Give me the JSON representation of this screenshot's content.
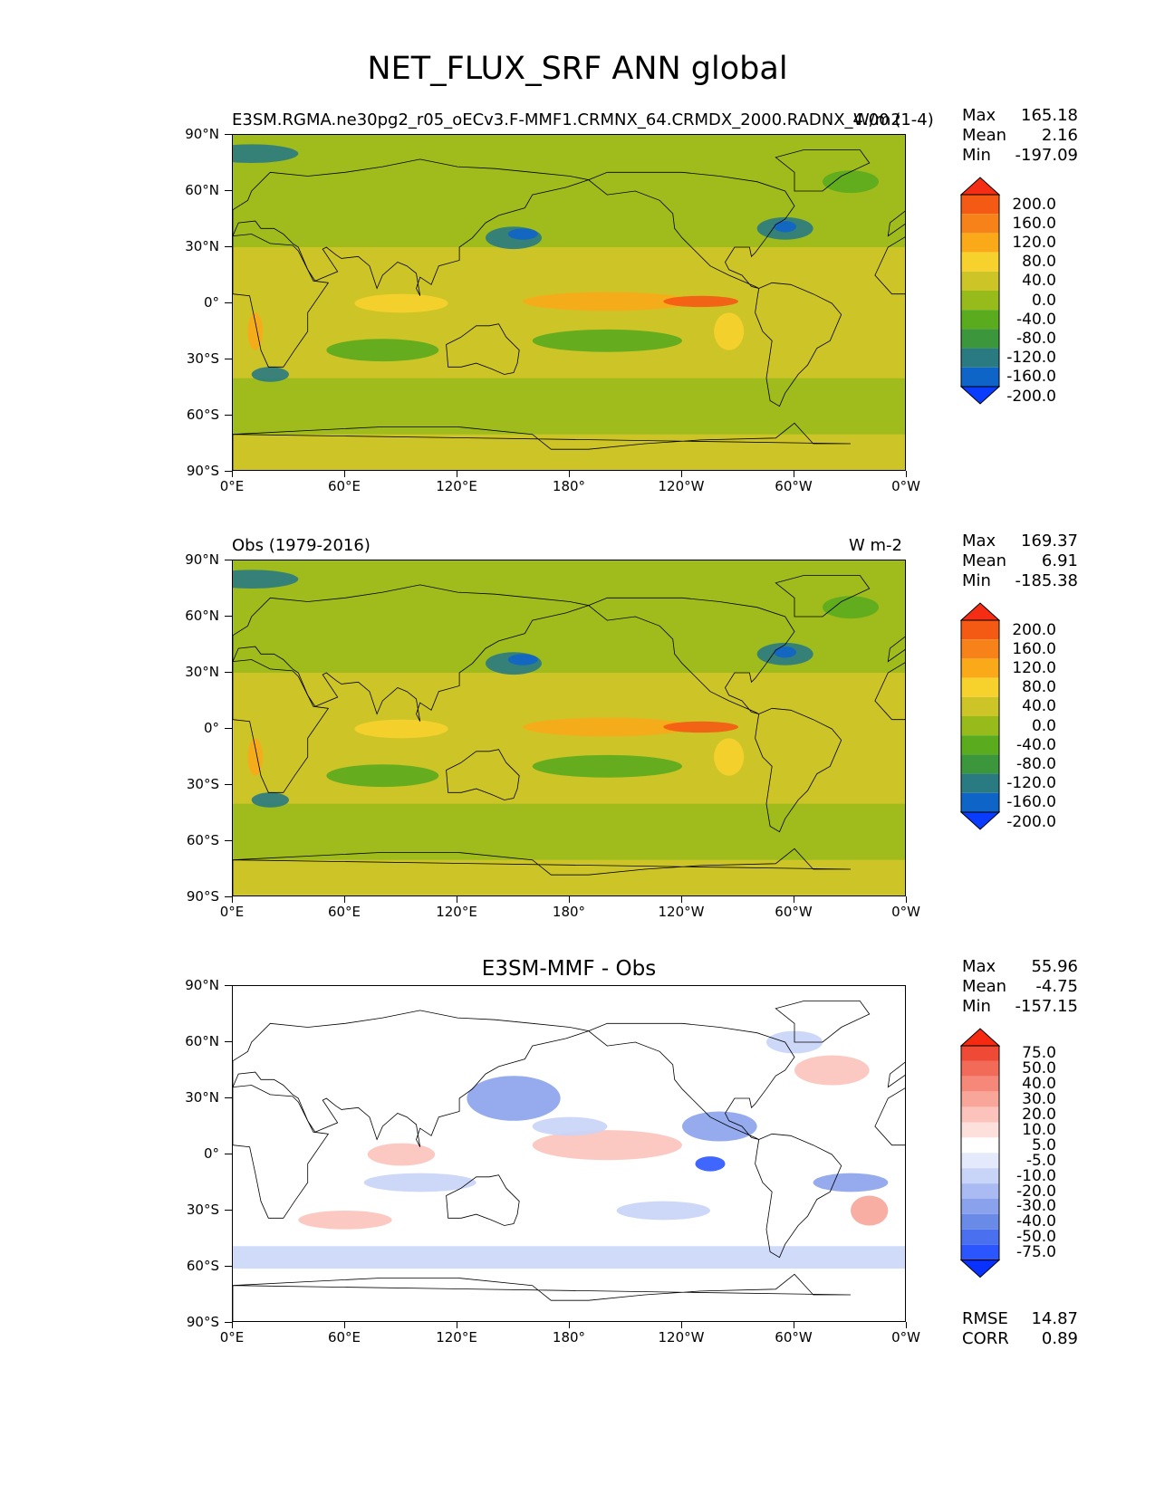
{
  "title": "NET_FLUX_SRF ANN global",
  "lat_ticks": [
    "90°N",
    "60°N",
    "30°N",
    "0°",
    "30°S",
    "60°S",
    "90°S"
  ],
  "lon_ticks": [
    "0°E",
    "60°E",
    "120°E",
    "180°",
    "120°W",
    "60°W",
    "0°W"
  ],
  "panels": [
    {
      "left_label": "E3SM.RGMA.ne30pg2_r05_oECv3.F-MMF1.CRMNX_64.CRMDX_2000.RADNX_4.00 (1-4)",
      "right_label": "W/m2",
      "center_label": "",
      "stats": {
        "max": "165.18",
        "mean": "2.16",
        "min": "-197.09"
      },
      "colorbar_labels": [
        "200.0",
        "160.0",
        "120.0",
        "80.0",
        "40.0",
        "0.0",
        "-40.0",
        "-80.0",
        "-120.0",
        "-160.0",
        "-200.0"
      ]
    },
    {
      "left_label": "Obs (1979-2016)",
      "right_label": "W m-2",
      "center_label": "",
      "stats": {
        "max": "169.37",
        "mean": "6.91",
        "min": "-185.38"
      },
      "colorbar_labels": [
        "200.0",
        "160.0",
        "120.0",
        "80.0",
        "40.0",
        "0.0",
        "-40.0",
        "-80.0",
        "-120.0",
        "-160.0",
        "-200.0"
      ]
    },
    {
      "left_label": "",
      "right_label": "",
      "center_label": "E3SM-MMF - Obs",
      "stats": {
        "max": "55.96",
        "mean": "-4.75",
        "min": "-157.15"
      },
      "colorbar_labels": [
        "75.0",
        "50.0",
        "40.0",
        "30.0",
        "20.0",
        "10.0",
        "5.0",
        "-5.0",
        "-10.0",
        "-20.0",
        "-30.0",
        "-40.0",
        "-50.0",
        "-75.0"
      ]
    }
  ],
  "stat_labels": {
    "max": "Max",
    "mean": "Mean",
    "min": "Min",
    "rmse": "RMSE",
    "corr": "CORR"
  },
  "diff_stats": {
    "rmse": "14.87",
    "corr": "0.89"
  },
  "chart_data": [
    {
      "type": "heatmap",
      "title": "E3SM.RGMA.ne30pg2_r05_oECv3.F-MMF1.CRMNX_64.CRMDX_2000.RADNX_4.00 (1-4)",
      "units": "W/m2",
      "x_range": [
        0,
        360
      ],
      "y_range": [
        -90,
        90
      ],
      "stats": {
        "max": 165.18,
        "mean": 2.16,
        "min": -197.09
      },
      "levels": [
        -200,
        -160,
        -120,
        -80,
        -40,
        0,
        40,
        80,
        120,
        160,
        200
      ],
      "colors": [
        "#0a3cff",
        "#0f64c8",
        "#2a7a82",
        "#3c963c",
        "#5aab1e",
        "#96bb1a",
        "#cdc428",
        "#f7d22c",
        "#faaa19",
        "#f7821a",
        "#f55a14",
        "#f52d14"
      ]
    },
    {
      "type": "heatmap",
      "title": "Obs (1979-2016)",
      "units": "W m-2",
      "x_range": [
        0,
        360
      ],
      "y_range": [
        -90,
        90
      ],
      "stats": {
        "max": 169.37,
        "mean": 6.91,
        "min": -185.38
      },
      "levels": [
        -200,
        -160,
        -120,
        -80,
        -40,
        0,
        40,
        80,
        120,
        160,
        200
      ]
    },
    {
      "type": "heatmap",
      "title": "E3SM-MMF - Obs",
      "x_range": [
        0,
        360
      ],
      "y_range": [
        -90,
        90
      ],
      "stats": {
        "max": 55.96,
        "mean": -4.75,
        "min": -157.15,
        "rmse": 14.87,
        "corr": 0.89
      },
      "levels": [
        -75,
        -50,
        -40,
        -30,
        -20,
        -10,
        -5,
        5,
        10,
        20,
        30,
        40,
        50,
        75
      ],
      "colors": [
        "#0a32ff",
        "#2a55ff",
        "#4a70f0",
        "#6a8ae8",
        "#8aa2ec",
        "#a9bbf2",
        "#c8d4f8",
        "#e4eafc",
        "#ffffff",
        "#fde0dc",
        "#fbc3bb",
        "#f8a59a",
        "#f58878",
        "#f26a58",
        "#ef4a36",
        "#f52a10"
      ]
    }
  ]
}
